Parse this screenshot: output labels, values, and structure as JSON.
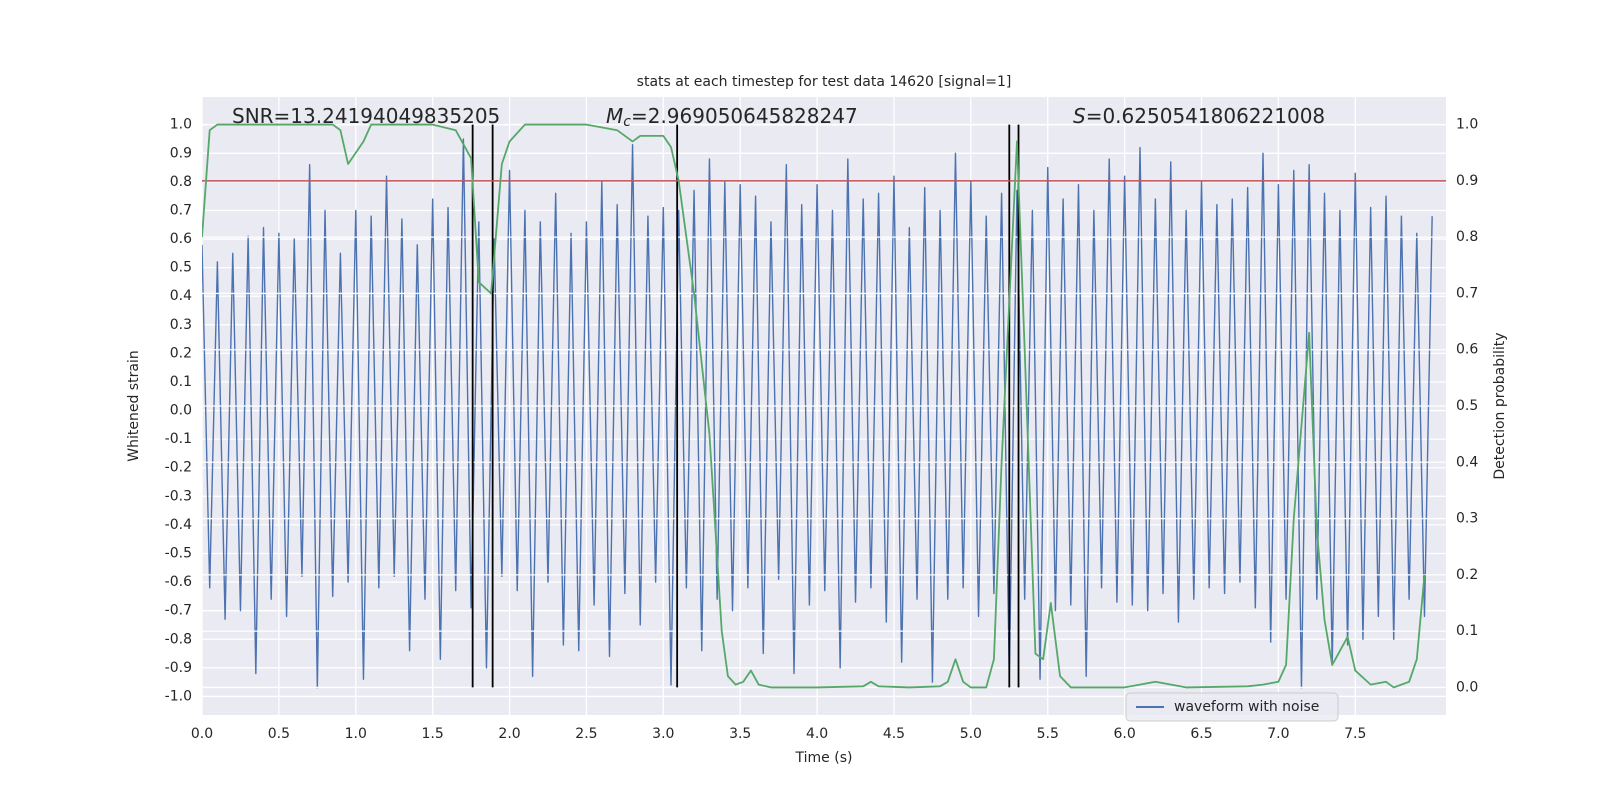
{
  "chart_data": {
    "type": "line",
    "title": "stats at each timestep for test data 14620 [signal=1]",
    "xlabel": "Time (s)",
    "ylabel": "Whitened strain",
    "y2label": "Detection probability",
    "xlim": [
      0,
      8.09
    ],
    "ylim": [
      -1.065,
      1.097
    ],
    "y2lim": [
      -0.049,
      1.049
    ],
    "xticks": [
      {
        "value": 0,
        "label": "0.0"
      },
      0.5,
      {
        "value": 1,
        "label": "1.0"
      },
      1.5,
      {
        "value": 2,
        "label": "2.0"
      },
      2.5,
      {
        "value": 3,
        "label": "3.0"
      },
      3.5,
      {
        "value": 4,
        "label": "4.0"
      },
      4.5,
      {
        "value": 5,
        "label": "5.0"
      },
      5.5,
      {
        "value": 6,
        "label": "6.0"
      },
      6.5,
      {
        "value": 7,
        "label": "7.0"
      },
      7.5
    ],
    "yticks": [
      {
        "value": -1,
        "label": "-1.0"
      },
      -0.9,
      -0.8,
      -0.7,
      -0.6,
      -0.5,
      -0.4,
      -0.3,
      -0.2,
      -0.1,
      {
        "value": 0,
        "label": "0.0"
      },
      0.1,
      0.2,
      0.3,
      0.4,
      0.5,
      0.6,
      0.7,
      0.8,
      0.9,
      {
        "value": 1,
        "label": "1.0"
      }
    ],
    "y2ticks": [
      {
        "value": 0,
        "label": "0.0"
      },
      0.1,
      0.2,
      0.3,
      0.4,
      0.5,
      0.6,
      0.7,
      0.8,
      0.9,
      {
        "value": 1,
        "label": "1.0"
      }
    ],
    "grid": true,
    "legend_loc": "lower right",
    "annotations": [
      {
        "text": "SNR=13.24194049835205"
      },
      {
        "symbol": "M",
        "subscript": "c",
        "text": "=2.969050645828247"
      },
      {
        "symbol": "S",
        "text": "=0.6250541806221008"
      }
    ],
    "threshold": {
      "value": 0.9,
      "axis": "y2",
      "color": "#c44e52"
    },
    "vlines": {
      "x": [
        1.76,
        1.89,
        3.09,
        5.25,
        5.31
      ],
      "ymin": 0,
      "ymax": 1,
      "axis": "y2",
      "color": "#000000"
    },
    "series": [
      {
        "name": "waveform with noise",
        "color": "#4c72b0",
        "x": [
          0,
          0.05,
          0.1,
          0.15,
          0.2,
          0.25,
          0.3,
          0.35,
          0.4,
          0.45,
          0.5,
          0.55,
          0.6,
          0.65,
          0.7,
          0.75,
          0.8,
          0.85,
          0.9,
          0.95,
          1,
          1.05,
          1.1,
          1.15,
          1.2,
          1.25,
          1.3,
          1.35,
          1.4,
          1.45,
          1.5,
          1.55,
          1.6,
          1.65,
          1.7,
          1.75,
          1.8,
          1.85,
          1.9,
          1.95,
          2,
          2.05,
          2.1,
          2.15,
          2.2,
          2.25,
          2.3,
          2.35,
          2.4,
          2.45,
          2.5,
          2.55,
          2.6,
          2.65,
          2.7,
          2.75,
          2.8,
          2.85,
          2.9,
          2.95,
          3,
          3.05,
          3.1,
          3.15,
          3.2,
          3.25,
          3.3,
          3.35,
          3.4,
          3.45,
          3.5,
          3.55,
          3.6,
          3.65,
          3.7,
          3.75,
          3.8,
          3.85,
          3.9,
          3.95,
          4,
          4.05,
          4.1,
          4.15,
          4.2,
          4.25,
          4.3,
          4.35,
          4.4,
          4.45,
          4.5,
          4.55,
          4.6,
          4.65,
          4.7,
          4.75,
          4.8,
          4.85,
          4.9,
          4.95,
          5,
          5.05,
          5.1,
          5.15,
          5.2,
          5.25,
          5.3,
          5.35,
          5.4,
          5.45,
          5.5,
          5.55,
          5.6,
          5.65,
          5.7,
          5.75,
          5.8,
          5.85,
          5.9,
          5.95,
          6,
          6.05,
          6.1,
          6.15,
          6.2,
          6.25,
          6.3,
          6.35,
          6.4,
          6.45,
          6.5,
          6.55,
          6.6,
          6.65,
          6.7,
          6.75,
          6.8,
          6.85,
          6.9,
          6.95,
          7,
          7.05,
          7.1,
          7.15,
          7.2,
          7.25,
          7.3,
          7.35,
          7.4,
          7.45,
          7.5,
          7.55,
          7.6,
          7.65,
          7.7,
          7.75,
          7.8,
          7.85,
          7.9,
          7.95,
          8
        ],
        "values": [
          0.58,
          -0.62,
          0.52,
          -0.73,
          0.55,
          -0.7,
          0.61,
          -0.92,
          0.64,
          -0.66,
          0.62,
          -0.72,
          0.6,
          -0.58,
          0.86,
          -0.97,
          0.7,
          -0.65,
          0.55,
          -0.6,
          0.7,
          -0.94,
          0.68,
          -0.62,
          0.82,
          -0.58,
          0.67,
          -0.84,
          0.58,
          -0.66,
          0.74,
          -0.87,
          0.71,
          -0.63,
          0.95,
          -0.69,
          0.66,
          -0.9,
          0.6,
          -0.58,
          0.84,
          -0.63,
          0.7,
          -0.93,
          0.66,
          -0.6,
          0.76,
          -0.82,
          0.62,
          -0.84,
          0.66,
          -0.68,
          0.8,
          -0.86,
          0.72,
          -0.64,
          0.93,
          -0.75,
          0.68,
          -0.6,
          0.71,
          -0.96,
          0.7,
          -0.62,
          0.77,
          -0.84,
          0.88,
          -0.66,
          0.8,
          -0.7,
          0.79,
          -0.62,
          0.75,
          -0.85,
          0.66,
          -0.59,
          0.86,
          -0.92,
          0.72,
          -0.68,
          0.79,
          -0.63,
          0.7,
          -0.9,
          0.88,
          -0.67,
          0.74,
          -0.62,
          0.76,
          -0.74,
          0.82,
          -0.88,
          0.64,
          -0.66,
          0.78,
          -0.95,
          0.7,
          -0.66,
          0.9,
          -0.62,
          0.8,
          -0.72,
          0.68,
          -0.64,
          0.76,
          -0.93,
          0.77,
          -0.66,
          0.7,
          -0.94,
          0.85,
          -0.7,
          0.74,
          -0.68,
          0.79,
          -0.93,
          0.7,
          -0.62,
          0.88,
          -0.67,
          0.82,
          -0.68,
          0.92,
          -0.7,
          0.74,
          -0.64,
          0.87,
          -0.74,
          0.7,
          -0.66,
          0.8,
          -0.62,
          0.72,
          -0.64,
          0.74,
          -0.6,
          0.78,
          -0.69,
          0.9,
          -0.81,
          0.79,
          -0.66,
          0.84,
          -0.97,
          0.86,
          -0.66,
          0.76,
          -0.89,
          0.7,
          -0.82,
          0.83,
          -0.8,
          0.71,
          -0.72,
          0.75,
          -0.8,
          0.68,
          -0.66,
          0.62,
          -0.72,
          0.68
        ]
      },
      {
        "color": "#55a868",
        "axis": "y2",
        "x": [
          0,
          0.05,
          0.1,
          0.2,
          0.85,
          0.9,
          0.95,
          1.05,
          1.1,
          1.5,
          1.65,
          1.75,
          1.8,
          1.88,
          1.95,
          2,
          2.1,
          2.5,
          2.7,
          2.8,
          2.85,
          3,
          3.05,
          3.1,
          3.2,
          3.3,
          3.38,
          3.42,
          3.47,
          3.52,
          3.57,
          3.62,
          3.7,
          4,
          4.3,
          4.35,
          4.4,
          4.6,
          4.8,
          4.85,
          4.9,
          4.95,
          5,
          5.1,
          5.15,
          5.2,
          5.3,
          5.35,
          5.42,
          5.47,
          5.52,
          5.58,
          5.65,
          6,
          6.2,
          6.4,
          6.8,
          6.9,
          7,
          7.05,
          7.1,
          7.2,
          7.25,
          7.3,
          7.35,
          7.45,
          7.5,
          7.6,
          7.7,
          7.75,
          7.8,
          7.85,
          7.9,
          7.95
        ],
        "values": [
          0.8,
          0.99,
          1.0,
          1.0,
          1.0,
          0.99,
          0.93,
          0.97,
          1.0,
          1.0,
          0.99,
          0.94,
          0.72,
          0.7,
          0.93,
          0.97,
          1.0,
          1.0,
          0.99,
          0.97,
          0.98,
          0.98,
          0.96,
          0.9,
          0.7,
          0.45,
          0.1,
          0.02,
          0.005,
          0.01,
          0.03,
          0.005,
          0.0,
          0.0,
          0.002,
          0.01,
          0.002,
          0.0,
          0.002,
          0.01,
          0.05,
          0.01,
          0.0,
          0.0,
          0.05,
          0.4,
          0.97,
          0.6,
          0.06,
          0.05,
          0.15,
          0.02,
          0.0,
          0.0,
          0.01,
          0.0,
          0.002,
          0.005,
          0.01,
          0.04,
          0.3,
          0.63,
          0.28,
          0.12,
          0.04,
          0.09,
          0.03,
          0.005,
          0.01,
          0.0,
          0.005,
          0.01,
          0.05,
          0.2
        ]
      }
    ]
  }
}
